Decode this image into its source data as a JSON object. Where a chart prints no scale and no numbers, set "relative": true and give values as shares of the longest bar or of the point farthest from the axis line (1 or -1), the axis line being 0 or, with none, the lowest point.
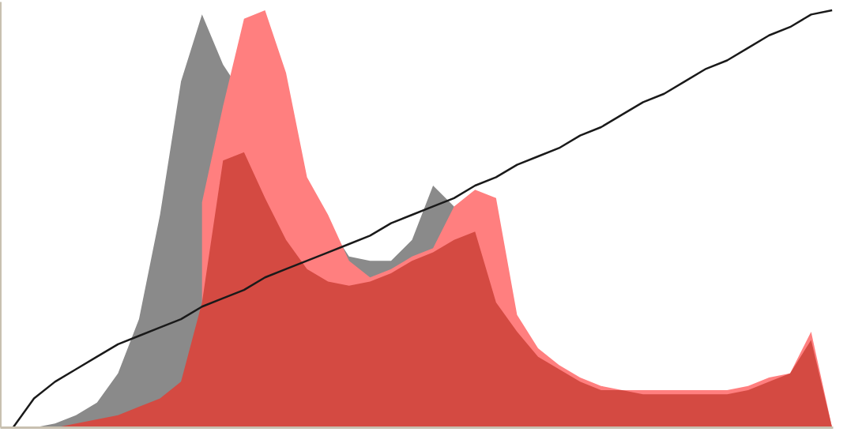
{
  "chart_data": {
    "type": "area",
    "relative": true,
    "categories": [
      null,
      null,
      null,
      null,
      null,
      null,
      null,
      null,
      null,
      null,
      null,
      null,
      null,
      null,
      null,
      null,
      null,
      null,
      null,
      null,
      null,
      null,
      null,
      null,
      null,
      null,
      null,
      null,
      null,
      null,
      null,
      null,
      null,
      null,
      null,
      null,
      null,
      null,
      null,
      null
    ],
    "series": [
      {
        "color": "#8a8a8a",
        "values": [
          0,
          0,
          0.01,
          0.03,
          0.06,
          0.13,
          0.26,
          0.51,
          0.83,
          0.99,
          0.87,
          null,
          null,
          null,
          null,
          null,
          0.41,
          0.4,
          0.4,
          0.45,
          0.58,
          0.53,
          null,
          null,
          null,
          null,
          null,
          null,
          null,
          null,
          null,
          null,
          null,
          null,
          null,
          null,
          null,
          null,
          null,
          null
        ]
      },
      {
        "color": "#ff7f7f",
        "values": [
          null,
          null,
          null,
          null,
          null,
          null,
          null,
          null,
          null,
          0.54,
          0.77,
          0.98,
          1.0,
          0.85,
          0.6,
          0.51,
          0.4,
          0.36,
          0.38,
          0.41,
          0.43,
          0.53,
          0.57,
          0.55,
          0.27,
          0.19,
          0.15,
          0.12,
          0.1,
          0.09,
          0.09,
          0.09,
          0.09,
          0.09,
          0.09,
          0.1,
          0.12,
          0.13,
          0.23,
          0
        ]
      },
      {
        "color": "#d44a42",
        "values": [
          0,
          0,
          0,
          0.01,
          0.02,
          0.03,
          0.05,
          0.07,
          0.11,
          0.3,
          0.64,
          0.66,
          0.55,
          0.45,
          0.38,
          0.35,
          0.34,
          0.35,
          0.37,
          0.4,
          0.42,
          0.45,
          0.47,
          0.3,
          0.23,
          0.17,
          0.14,
          0.11,
          0.09,
          0.09,
          0.08,
          0.08,
          0.08,
          0.08,
          0.08,
          0.09,
          0.11,
          0.13,
          0.21,
          0
        ]
      },
      {
        "type": "line",
        "color": "#1a1a1a",
        "values": [
          0,
          0.07,
          0.11,
          0.14,
          0.17,
          0.2,
          0.22,
          0.24,
          0.26,
          0.29,
          0.31,
          0.33,
          0.36,
          0.38,
          0.4,
          0.42,
          0.44,
          0.46,
          0.49,
          0.51,
          0.53,
          0.55,
          0.58,
          0.6,
          0.63,
          0.65,
          0.67,
          0.7,
          0.72,
          0.75,
          0.78,
          0.8,
          0.83,
          0.86,
          0.88,
          0.91,
          0.94,
          0.96,
          0.99,
          1.0
        ]
      }
    ]
  }
}
